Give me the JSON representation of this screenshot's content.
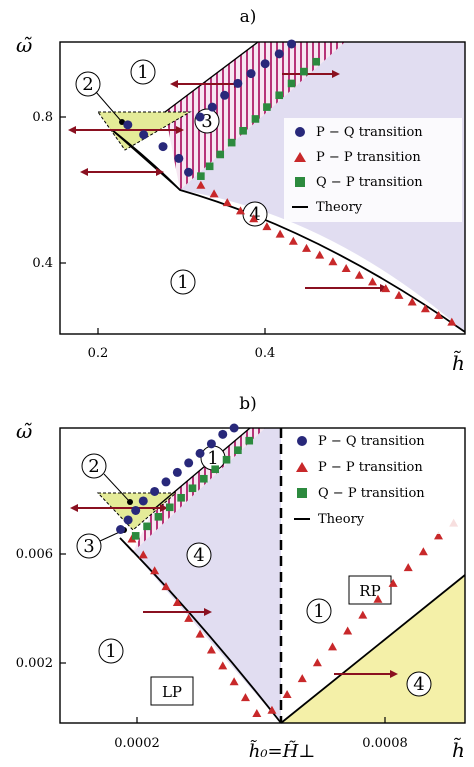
{
  "chart_data": [
    {
      "type": "scatter",
      "title": "a)",
      "xlabel": "h̃",
      "ylabel": "ω̃",
      "xlim": [
        0.155,
        0.615
      ],
      "ylim": [
        0.2,
        0.94
      ],
      "xticks": [
        "0.2",
        "0.4"
      ],
      "xtick_values": [
        0.2,
        0.4
      ],
      "yticks": [
        "0.4",
        "0.8"
      ],
      "ytick_values": [
        0.4,
        0.8
      ],
      "grid": false,
      "legend_position": "right",
      "region_labels": [
        {
          "text": "1",
          "x": 0.355,
          "y": 0.88
        },
        {
          "text": "2",
          "x": 0.195,
          "y": 0.845
        },
        {
          "text": "3",
          "x": 0.33,
          "y": 0.765
        },
        {
          "text": "4",
          "x": 0.39,
          "y": 0.56
        },
        {
          "text": "1",
          "x": 0.265,
          "y": 0.34
        }
      ],
      "series": [
        {
          "name": "P − Q transition",
          "marker": "circle",
          "color": "#28287a",
          "x": [
            0.232,
            0.25,
            0.272,
            0.29,
            0.301,
            0.314,
            0.328,
            0.342,
            0.357,
            0.372,
            0.388,
            0.404,
            0.418
          ],
          "y": [
            0.73,
            0.705,
            0.675,
            0.645,
            0.61,
            0.75,
            0.775,
            0.805,
            0.835,
            0.86,
            0.885,
            0.91,
            0.935
          ]
        },
        {
          "name": "P − P transition",
          "marker": "triangle",
          "color": "#c8282a",
          "x": [
            0.315,
            0.33,
            0.345,
            0.36,
            0.375,
            0.39,
            0.405,
            0.42,
            0.435,
            0.45,
            0.465,
            0.48,
            0.495,
            0.51,
            0.525,
            0.54,
            0.555,
            0.57,
            0.585,
            0.6
          ],
          "y": [
            0.577,
            0.555,
            0.533,
            0.512,
            0.492,
            0.472,
            0.453,
            0.435,
            0.417,
            0.4,
            0.383,
            0.366,
            0.349,
            0.332,
            0.315,
            0.298,
            0.281,
            0.264,
            0.247,
            0.23
          ]
        },
        {
          "name": "Q − P transition",
          "marker": "square",
          "color": "#2c8a3e",
          "x": [
            0.315,
            0.325,
            0.337,
            0.35,
            0.363,
            0.377,
            0.39,
            0.404,
            0.418,
            0.432,
            0.446
          ],
          "y": [
            0.6,
            0.625,
            0.655,
            0.685,
            0.715,
            0.745,
            0.775,
            0.805,
            0.835,
            0.865,
            0.89
          ]
        },
        {
          "name": "Theory",
          "marker": "line",
          "color": "#000000",
          "x": [
            0.23,
            0.26,
            0.29,
            0.31,
            0.35,
            0.4,
            0.45,
            0.5,
            0.55,
            0.6,
            0.612
          ],
          "y": [
            0.735,
            0.685,
            0.637,
            0.595,
            0.53,
            0.46,
            0.4,
            0.35,
            0.29,
            0.23,
            0.215
          ]
        }
      ]
    },
    {
      "type": "scatter",
      "title": "b)",
      "xlabel": "h̃",
      "ylabel": "ω̃",
      "xlim": [
        0.0,
        0.00107
      ],
      "ylim": [
        0.0,
        0.0093
      ],
      "xticks": [
        "0.0002",
        "0.0008"
      ],
      "xtick_values": [
        0.0002,
        0.0008
      ],
      "yticks": [
        "0.002",
        "0.006"
      ],
      "ytick_values": [
        0.002,
        0.006
      ],
      "h0_label": "h̃₀=H̃⊥",
      "h0_value": 0.00054,
      "grid": false,
      "legend_position": "right",
      "region_labels": [
        {
          "text": "1",
          "x": 0.00044,
          "y": 0.0085
        },
        {
          "text": "2",
          "x": 0.000145,
          "y": 0.0082
        },
        {
          "text": "3",
          "x": 0.000165,
          "y": 0.0063
        },
        {
          "text": "4",
          "x": 0.00035,
          "y": 0.0061
        },
        {
          "text": "1",
          "x": 0.0001,
          "y": 0.0024
        },
        {
          "text": "1",
          "x": 0.00073,
          "y": 0.0033
        },
        {
          "text": "4",
          "x": 0.00097,
          "y": 0.0013
        }
      ],
      "phase_labels": [
        "LP",
        "RP"
      ],
      "series": [
        {
          "name": "P − Q transition",
          "marker": "circle",
          "color": "#28287a",
          "x": [
            0.00016,
            0.00018,
            0.0002,
            0.00022,
            0.00025,
            0.00028,
            0.00031,
            0.00034,
            0.00037,
            0.0004,
            0.00043,
            0.00046,
            0.00049,
            0.00052
          ],
          "y": [
            0.0061,
            0.0064,
            0.0067,
            0.007,
            0.0073,
            0.0076,
            0.0079,
            0.0082,
            0.0085,
            0.0088,
            0.0091,
            0.0093,
            0.0095,
            0.0097
          ]
        },
        {
          "name": "P − P transition",
          "marker": "triangle",
          "color": "#c8282a",
          "x": [
            0.00019,
            0.00022,
            0.00025,
            0.00028,
            0.00031,
            0.00034,
            0.00037,
            0.0004,
            0.00043,
            0.00046,
            0.00049,
            0.00052,
            0.00056,
            0.0006,
            0.00064,
            0.00068,
            0.00072,
            0.00076,
            0.0008,
            0.00084,
            0.00088,
            0.00092,
            0.00096,
            0.001,
            0.00104
          ],
          "y": [
            0.0058,
            0.0053,
            0.0048,
            0.0043,
            0.0038,
            0.0033,
            0.0028,
            0.0023,
            0.0018,
            0.0013,
            0.0008,
            0.0003,
            0.0004,
            0.0009,
            0.0014,
            0.0019,
            0.0024,
            0.0029,
            0.0034,
            0.0039,
            0.0044,
            0.0049,
            0.0054,
            0.0059,
            0.0063
          ]
        },
        {
          "name": "Q − P transition",
          "marker": "square",
          "color": "#2c8a3e",
          "x": [
            0.0002,
            0.00023,
            0.00026,
            0.00029,
            0.00032,
            0.00035,
            0.00038,
            0.00041,
            0.00044,
            0.00047,
            0.0005
          ],
          "y": [
            0.0059,
            0.0062,
            0.0065,
            0.0068,
            0.0071,
            0.0074,
            0.0077,
            0.008,
            0.0083,
            0.0086,
            0.0089
          ]
        },
        {
          "name": "Theory",
          "marker": "line",
          "color": "#000000",
          "x": [
            0.00017,
            0.0003,
            0.0004,
            0.00054,
            0.0008,
            0.00107
          ],
          "y": [
            0.006,
            0.0037,
            0.0024,
            0.0,
            0.0032,
            0.0066
          ]
        }
      ]
    }
  ]
}
